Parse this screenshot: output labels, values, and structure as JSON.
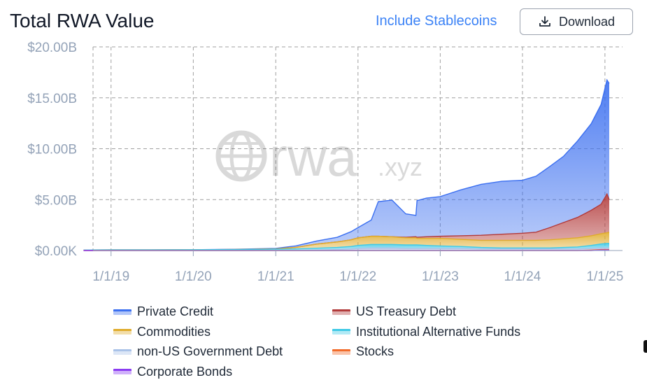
{
  "header": {
    "title": "Total RWA Value",
    "stablecoins_link": "Include Stablecoins",
    "download_label": "Download",
    "download_icon": "download-icon"
  },
  "watermark": {
    "text": "rwa",
    "suffix": ".xyz",
    "icon": "globe-icon"
  },
  "colors": {
    "private_credit": "#3b6ff0",
    "us_treasury": "#b23a3a",
    "commodities": "#e0ac2c",
    "institutional": "#3fc9e6",
    "non_us_gov": "#a9c2e8",
    "stocks": "#f26b2a",
    "corporate_bonds": "#8b3cf2"
  },
  "chart_data": {
    "type": "area",
    "title": "Total RWA Value",
    "x_ticks": [
      "1/1/19",
      "1/1/20",
      "1/1/21",
      "1/1/22",
      "1/1/23",
      "1/1/24",
      "1/1/25"
    ],
    "y_ticks": [
      "$0.00K",
      "$5.00B",
      "$10.00B",
      "$15.00B",
      "$20.00B"
    ],
    "ylim": [
      0,
      20
    ],
    "y_unit": "billions USD",
    "stacked": true,
    "grid": true,
    "legend_position": "bottom",
    "x": [
      "2018-09-01",
      "2019-01-01",
      "2019-07-01",
      "2020-01-01",
      "2020-07-01",
      "2021-01-01",
      "2021-04-01",
      "2021-07-01",
      "2021-10-01",
      "2021-12-01",
      "2022-01-01",
      "2022-03-01",
      "2022-04-01",
      "2022-06-01",
      "2022-08-01",
      "2022-09-15",
      "2022-09-20",
      "2022-11-01",
      "2023-01-01",
      "2023-04-01",
      "2023-07-01",
      "2023-10-01",
      "2024-01-01",
      "2024-03-01",
      "2024-05-01",
      "2024-07-01",
      "2024-09-01",
      "2024-11-01",
      "2024-12-15",
      "2025-01-10",
      "2025-01-20"
    ],
    "series": [
      {
        "name": "Corporate Bonds",
        "values": [
          0,
          0,
          0,
          0,
          0,
          0,
          0,
          0,
          0,
          0,
          0,
          0,
          0,
          0,
          0,
          0,
          0,
          0,
          0,
          0,
          0,
          0,
          0,
          0,
          0,
          0,
          0,
          0,
          0.05,
          0.05,
          0.05
        ]
      },
      {
        "name": "Stocks",
        "values": [
          0,
          0,
          0,
          0,
          0,
          0,
          0,
          0,
          0,
          0,
          0,
          0,
          0,
          0,
          0,
          0,
          0,
          0,
          0,
          0,
          0,
          0,
          0,
          0,
          0,
          0,
          0,
          0.05,
          0.05,
          0.05,
          0.05
        ]
      },
      {
        "name": "non-US Government Debt",
        "values": [
          0,
          0,
          0,
          0,
          0,
          0.01,
          0.01,
          0.05,
          0.1,
          0.15,
          0.2,
          0.25,
          0.25,
          0.25,
          0.2,
          0.2,
          0.2,
          0.2,
          0.2,
          0.2,
          0.15,
          0.15,
          0.15,
          0.15,
          0.15,
          0.15,
          0.15,
          0.15,
          0.15,
          0.15,
          0.15
        ]
      },
      {
        "name": "Institutional Alternative Funds",
        "values": [
          0.05,
          0.06,
          0.06,
          0.08,
          0.1,
          0.12,
          0.15,
          0.18,
          0.2,
          0.25,
          0.3,
          0.35,
          0.35,
          0.35,
          0.35,
          0.35,
          0.35,
          0.3,
          0.25,
          0.2,
          0.15,
          0.1,
          0.1,
          0.1,
          0.1,
          0.15,
          0.2,
          0.3,
          0.4,
          0.45,
          0.45
        ]
      },
      {
        "name": "Commodities",
        "values": [
          0,
          0,
          0,
          0,
          0,
          0.03,
          0.15,
          0.4,
          0.55,
          0.65,
          0.75,
          0.8,
          0.8,
          0.75,
          0.7,
          0.7,
          0.65,
          0.7,
          0.75,
          0.7,
          0.7,
          0.75,
          0.75,
          0.75,
          0.8,
          0.85,
          0.9,
          0.95,
          1.0,
          1.05,
          1.1
        ]
      },
      {
        "name": "US Treasury Debt",
        "values": [
          0,
          0,
          0,
          0,
          0,
          0,
          0,
          0,
          0,
          0,
          0,
          0,
          0,
          0,
          0.05,
          0.1,
          0.1,
          0.15,
          0.2,
          0.35,
          0.5,
          0.6,
          0.7,
          0.8,
          1.2,
          1.6,
          2.0,
          2.5,
          2.9,
          3.8,
          3.2
        ]
      },
      {
        "name": "Private Credit",
        "values": [
          0,
          0,
          0,
          0,
          0.02,
          0.05,
          0.15,
          0.3,
          0.45,
          0.8,
          1.0,
          1.6,
          3.4,
          3.6,
          2.3,
          2.1,
          3.6,
          3.8,
          3.9,
          4.5,
          5.0,
          5.2,
          5.2,
          5.5,
          6.0,
          6.5,
          7.5,
          8.5,
          9.8,
          11.2,
          11.4
        ]
      }
    ]
  },
  "legend": [
    {
      "label": "Private Credit",
      "color_key": "private_credit"
    },
    {
      "label": "US Treasury Debt",
      "color_key": "us_treasury"
    },
    {
      "label": "Commodities",
      "color_key": "commodities"
    },
    {
      "label": "Institutional Alternative Funds",
      "color_key": "institutional"
    },
    {
      "label": "non-US Government Debt",
      "color_key": "non_us_gov"
    },
    {
      "label": "Stocks",
      "color_key": "stocks"
    },
    {
      "label": "Corporate Bonds",
      "color_key": "corporate_bonds"
    }
  ]
}
